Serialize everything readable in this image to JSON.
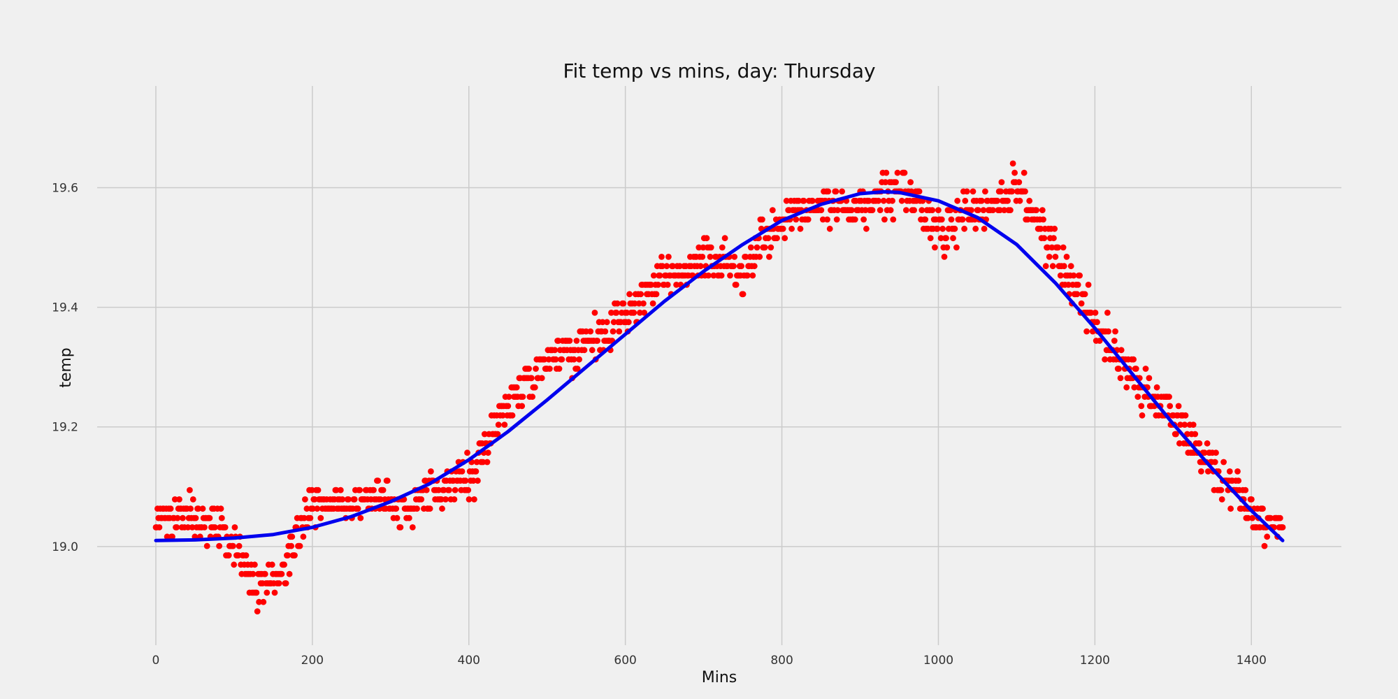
{
  "chart_data": {
    "type": "scatter",
    "title": "Fit temp vs mins, day: Thursday",
    "xlabel": "Mins",
    "ylabel": "temp",
    "xlim": [
      -75,
      1515
    ],
    "ylim": [
      18.835,
      19.77
    ],
    "x_ticks": [
      0,
      200,
      400,
      600,
      800,
      1000,
      1200,
      1400
    ],
    "y_ticks": [
      19.0,
      19.2,
      19.4,
      19.6
    ],
    "x_tick_labels": [
      "0",
      "200",
      "400",
      "600",
      "800",
      "1000",
      "1200",
      "1400"
    ],
    "y_tick_labels": [
      "19.0",
      "19.2",
      "19.4",
      "19.6"
    ],
    "grid": true,
    "colors": {
      "background": "#f0f0f0",
      "grid": "#cbcbcb",
      "points": "#ff0000",
      "fit_line": "#0000ee"
    },
    "series": [
      {
        "kind": "scatter",
        "x_range": [
          0,
          1440
        ],
        "anchors": [
          [
            0,
            19.06
          ],
          [
            40,
            19.05
          ],
          [
            80,
            19.03
          ],
          [
            110,
            18.99
          ],
          [
            130,
            18.93
          ],
          [
            160,
            18.95
          ],
          [
            200,
            19.07
          ],
          [
            240,
            19.07
          ],
          [
            280,
            19.09
          ],
          [
            320,
            19.06
          ],
          [
            360,
            19.1
          ],
          [
            400,
            19.11
          ],
          [
            450,
            19.24
          ],
          [
            500,
            19.31
          ],
          [
            550,
            19.33
          ],
          [
            600,
            19.39
          ],
          [
            650,
            19.45
          ],
          [
            700,
            19.48
          ],
          [
            750,
            19.46
          ],
          [
            800,
            19.54
          ],
          [
            850,
            19.58
          ],
          [
            900,
            19.56
          ],
          [
            950,
            19.6
          ],
          [
            1000,
            19.53
          ],
          [
            1050,
            19.56
          ],
          [
            1100,
            19.6
          ],
          [
            1150,
            19.49
          ],
          [
            1200,
            19.38
          ],
          [
            1250,
            19.28
          ],
          [
            1300,
            19.22
          ],
          [
            1350,
            19.13
          ],
          [
            1400,
            19.06
          ],
          [
            1440,
            19.03
          ]
        ],
        "spread": 0.045,
        "count": 1300
      },
      {
        "kind": "line",
        "x": [
          0,
          50,
          100,
          150,
          200,
          250,
          300,
          350,
          400,
          450,
          500,
          550,
          600,
          650,
          700,
          750,
          800,
          850,
          900,
          930,
          950,
          1000,
          1050,
          1100,
          1150,
          1200,
          1250,
          1300,
          1350,
          1400,
          1440
        ],
        "y": [
          19.01,
          19.011,
          19.014,
          19.02,
          19.032,
          19.05,
          19.075,
          19.105,
          19.145,
          19.192,
          19.245,
          19.3,
          19.355,
          19.41,
          19.46,
          19.505,
          19.545,
          19.572,
          19.59,
          19.593,
          19.592,
          19.578,
          19.55,
          19.505,
          19.44,
          19.365,
          19.285,
          19.205,
          19.13,
          19.06,
          19.01
        ]
      }
    ]
  }
}
